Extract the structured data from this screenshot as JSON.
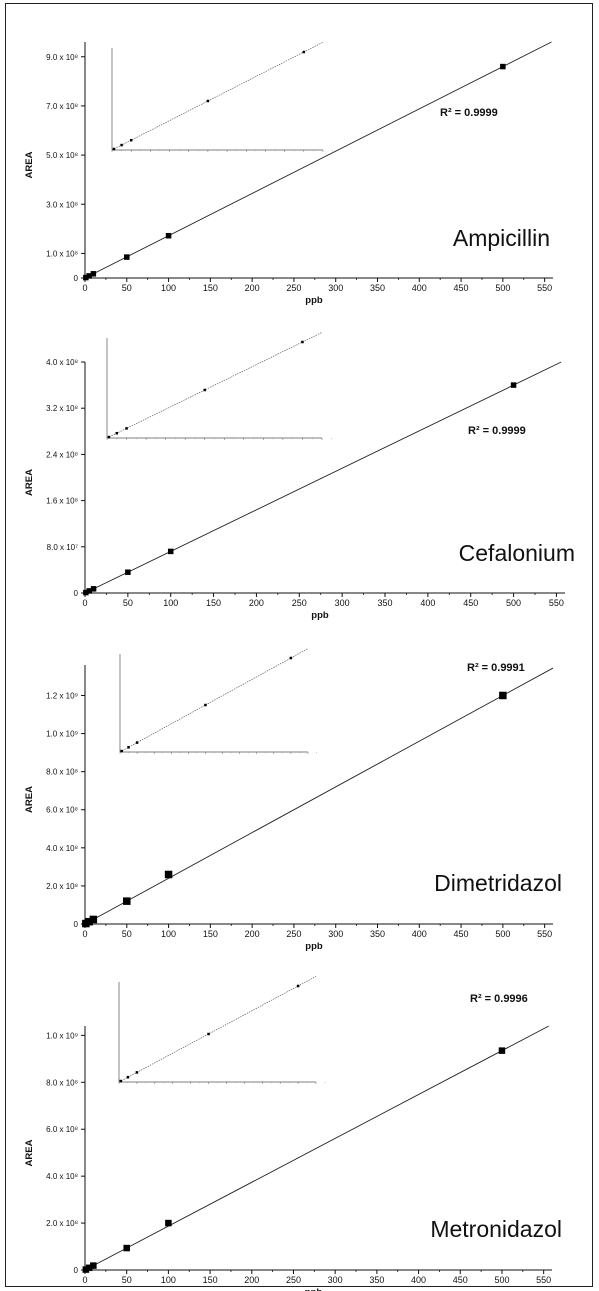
{
  "chart_data": [
    {
      "type": "scatter",
      "compound": "Ampicillin",
      "xlabel": "ppb",
      "ylabel": "AREA",
      "r2_label": "R² = 0.9999",
      "xlim": [
        0,
        560
      ],
      "ylim": [
        0,
        960000000
      ],
      "xticks": [
        0,
        50,
        100,
        150,
        200,
        250,
        300,
        350,
        400,
        450,
        500,
        550
      ],
      "xtick_labels": [
        "0",
        "50",
        "100",
        "150",
        "200",
        "250",
        "300",
        "350",
        "400",
        "450",
        "500",
        "550"
      ],
      "yticks": [
        0,
        100000000,
        300000000,
        500000000,
        700000000,
        900000000
      ],
      "ytick_labels": [
        "0",
        "1.0 x 10⁸",
        "3.0 x 10⁸",
        "5.0 x 10⁸",
        "7.0 x 10⁸",
        "9.0 x 10⁸"
      ],
      "x": [
        1,
        5,
        10,
        50,
        100,
        500
      ],
      "y": [
        1700000,
        8500000,
        17000000,
        85000000,
        172000000,
        860000000
      ],
      "line": {
        "slope": 1720000,
        "intercept": 0
      },
      "inset": {
        "x": [
          0.1,
          0.5,
          1,
          5,
          10
        ],
        "y": [
          0.01,
          0.05,
          0.1,
          0.5,
          1.0
        ],
        "xmax": 11,
        "marker": 3
      }
    },
    {
      "type": "scatter",
      "compound": "Cefalonium",
      "xlabel": "ppb",
      "ylabel": "AREA",
      "r2_label": "R² = 0.9999",
      "xlim": [
        0,
        560
      ],
      "ylim": [
        0,
        400000000
      ],
      "xticks": [
        0,
        50,
        100,
        150,
        200,
        250,
        300,
        350,
        400,
        450,
        500,
        550
      ],
      "xtick_labels": [
        "0",
        "50",
        "100",
        "150",
        "200",
        "250",
        "300",
        "350",
        "400",
        "450",
        "500",
        "550"
      ],
      "yticks": [
        0,
        80000000,
        160000000,
        240000000,
        320000000,
        400000000
      ],
      "ytick_labels": [
        "0",
        "8.0 x 10⁷",
        "1.6 x 10⁸",
        "2.4 x 10⁸",
        "3.2 x 10⁸",
        "4.0 x 10⁸"
      ],
      "x": [
        1,
        5,
        10,
        50,
        100,
        500
      ],
      "y": [
        720000,
        3600000,
        7200000,
        36000000,
        72000000,
        360000000
      ],
      "line": {
        "slope": 720000,
        "intercept": 0
      },
      "inset": {
        "x": [
          0.1,
          0.5,
          1,
          5,
          10
        ],
        "y": [
          0.01,
          0.05,
          0.1,
          0.5,
          1.0
        ],
        "xmax": 11,
        "marker": 3
      }
    },
    {
      "type": "scatter",
      "compound": "Dimetridazol",
      "xlabel": "ppb",
      "ylabel": "AREA",
      "r2_label": "R² = 0.9991",
      "xlim": [
        0,
        560
      ],
      "ylim": [
        0,
        1360000000
      ],
      "xticks": [
        0,
        50,
        100,
        150,
        200,
        250,
        300,
        350,
        400,
        450,
        500,
        550
      ],
      "xtick_labels": [
        "0",
        "50",
        "100",
        "150",
        "200",
        "250",
        "300",
        "350",
        "400",
        "450",
        "500",
        "550"
      ],
      "yticks": [
        0,
        200000000,
        400000000,
        600000000,
        800000000,
        1000000000,
        1200000000
      ],
      "ytick_labels": [
        "0",
        "2.0 x 10⁸",
        "4.0 x 10⁸",
        "6.0 x 10⁸",
        "8.0 x 10⁸",
        "1.0 x 10⁹",
        "1.2 x 10⁹"
      ],
      "x": [
        1,
        5,
        10,
        50,
        100,
        500
      ],
      "y": [
        2400000,
        12000000,
        24000000,
        120000000,
        260000000,
        1200000000
      ],
      "line": {
        "slope": 2400000,
        "intercept": 0
      },
      "inset": {
        "x": [
          0.1,
          0.5,
          1,
          5,
          10
        ],
        "y": [
          0.01,
          0.05,
          0.1,
          0.5,
          1.0
        ],
        "xmax": 11,
        "marker": 5
      }
    },
    {
      "type": "scatter",
      "compound": "Metronidazol",
      "xlabel": "ppb",
      "ylabel": "AREA",
      "r2_label": "R² = 0.9996",
      "xlim": [
        0,
        560
      ],
      "ylim": [
        0,
        1040000000
      ],
      "xticks": [
        0,
        50,
        100,
        150,
        200,
        250,
        300,
        350,
        400,
        450,
        500,
        550
      ],
      "xtick_labels": [
        "0",
        "50",
        "100",
        "150",
        "200",
        "250",
        "300",
        "350",
        "400",
        "450",
        "500",
        "550"
      ],
      "yticks": [
        0,
        200000000,
        400000000,
        600000000,
        800000000,
        1000000000
      ],
      "ytick_labels": [
        "0",
        "2.0 x 10⁸",
        "4.0 x 10⁸",
        "6.0 x 10⁸",
        "8.0 x 10⁸",
        "1.0 x 10⁹"
      ],
      "x": [
        1,
        5,
        10,
        50,
        100,
        500
      ],
      "y": [
        1870000,
        9350000,
        18700000,
        93500000,
        200000000,
        935000000
      ],
      "line": {
        "slope": 1870000,
        "intercept": 0
      },
      "inset": {
        "x": [
          0.1,
          0.5,
          1,
          5,
          10
        ],
        "y": [
          0.01,
          0.05,
          0.1,
          0.5,
          1.0
        ],
        "xmax": 11,
        "marker": 4
      }
    }
  ]
}
